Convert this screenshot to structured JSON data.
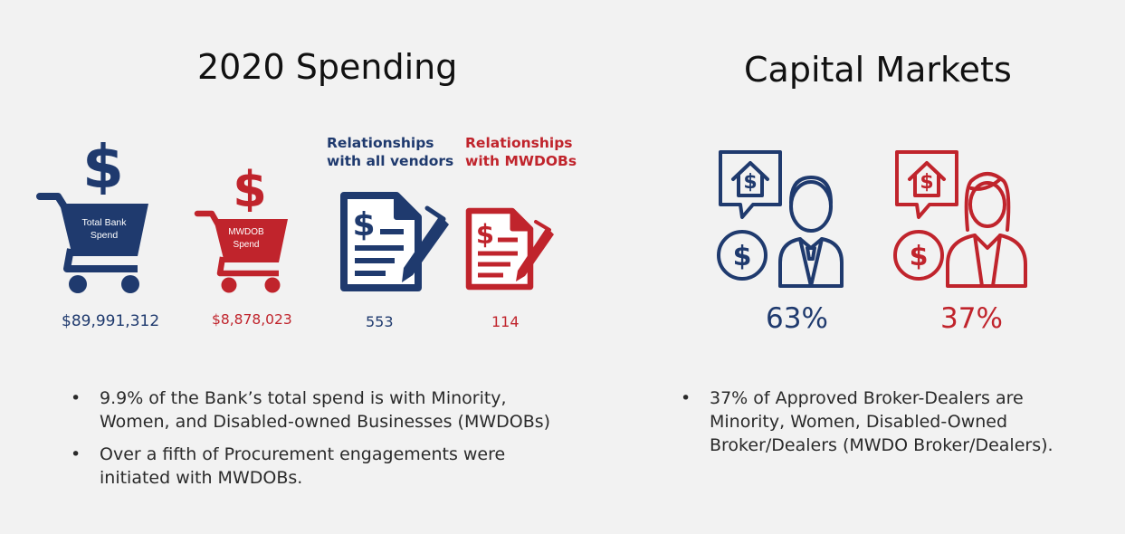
{
  "left": {
    "title": "2020 Spending",
    "total_bank_cart_label": "Total Bank\nSpend",
    "mwdob_cart_label": "MWDOB\nSpend",
    "total_bank_spend": "$89,991,312",
    "mwdob_spend": "$8,878,023",
    "all_vendors_header": "Relationships\nwith all vendors",
    "mwdob_header": "Relationships\nwith MWDOBs",
    "all_vendors_count": "553",
    "mwdob_count": "114",
    "bullets": [
      "9.9% of the Bank’s total spend is with Minority, Women, and Disabled-owned Businesses (MWDOBs)",
      "Over a fifth of Procurement engagements were initiated with MWDOBs."
    ]
  },
  "right": {
    "title": "Capital Markets",
    "male_pct": "63%",
    "female_pct": "37%",
    "bullets": [
      "37% of Approved Broker-Dealers are Minority, Women, Disabled-Owned Broker/Dealers (MWDO Broker/Dealers)."
    ]
  },
  "bullet_char": "•",
  "colors": {
    "navy": "#1f3a6e",
    "red": "#c0242c",
    "background": "#f2f2f2"
  },
  "icons": [
    "dollar-sign-icon",
    "shopping-cart-icon",
    "contract-signing-icon",
    "house-dollar-icon",
    "businessman-icon",
    "businesswoman-icon"
  ]
}
